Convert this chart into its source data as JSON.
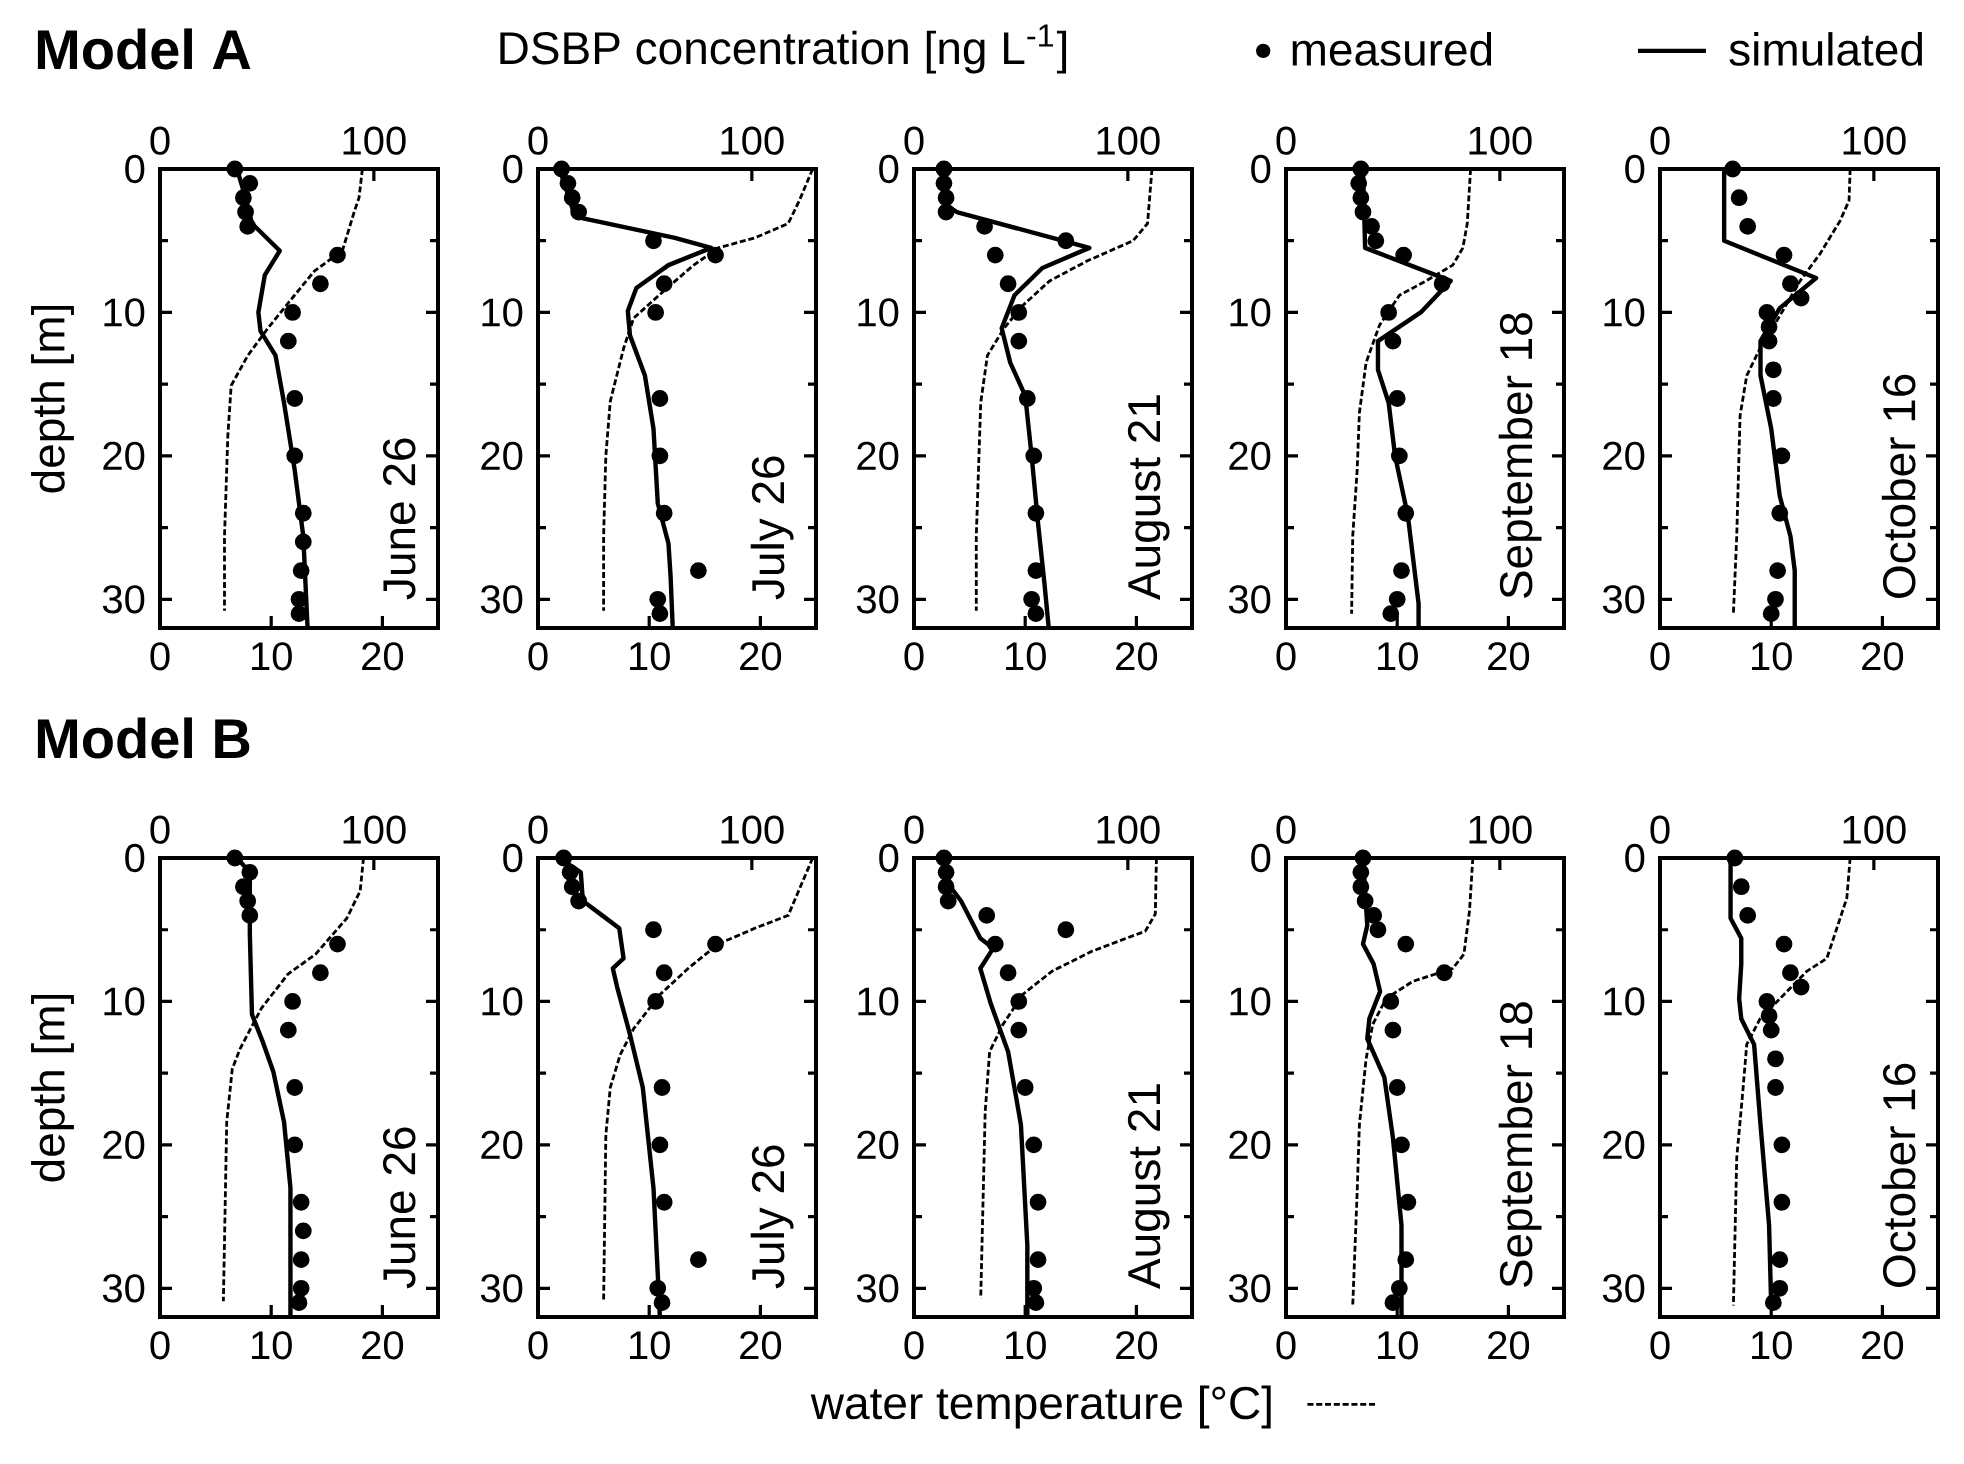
{
  "chart_data": [
    {
      "type": "line",
      "title": "Model A",
      "ylabel": "depth [m]",
      "annotations": [
        "June 26"
      ],
      "xlim": [
        0,
        25
      ],
      "xticks": [
        0,
        10,
        20
      ],
      "x2lim": [
        0,
        130
      ],
      "x2ticks": [
        0,
        100
      ],
      "ylim": [
        32,
        0
      ],
      "yticks": [
        0,
        10,
        20,
        30
      ],
      "series": [
        {
          "type": "scatter",
          "marker": "circle",
          "axis": "x2",
          "color": "#000000",
          "x": [
            35,
            42,
            39,
            40,
            41,
            83,
            75,
            62,
            60,
            63,
            63,
            67,
            67,
            66,
            65,
            65
          ],
          "values": [
            0,
            1,
            2,
            3,
            4,
            6,
            8,
            10,
            12,
            16,
            20,
            24,
            26,
            28,
            30,
            31
          ]
        },
        {
          "type": "line",
          "line_style": "solid",
          "axis": "x2",
          "color": "#000000",
          "x": [
            36,
            40,
            43,
            56,
            49,
            46,
            47,
            54,
            58,
            63,
            67,
            69
          ],
          "values": [
            0,
            2,
            3.8,
            5.7,
            7.4,
            10,
            11.3,
            13,
            16.3,
            21,
            25.6,
            32
          ]
        },
        {
          "type": "line",
          "line_style": "dashed",
          "color": "#000000",
          "x": [
            18.2,
            17.9,
            17.5,
            16.4,
            13.9,
            12.1,
            9.7,
            7.9,
            6.4,
            6.1,
            5.8,
            5.8
          ],
          "values": [
            0,
            2,
            2.9,
            5.7,
            7.1,
            8.8,
            11.1,
            13,
            15.1,
            18.6,
            25.6,
            30.8
          ]
        }
      ]
    },
    {
      "type": "line",
      "annotations": [
        "July 26"
      ],
      "xlim": [
        0,
        25
      ],
      "xticks": [
        0,
        10,
        20
      ],
      "x2lim": [
        0,
        130
      ],
      "x2ticks": [
        0,
        100
      ],
      "ylim": [
        32,
        0
      ],
      "yticks": [
        0,
        10,
        20,
        30
      ],
      "series": [
        {
          "type": "scatter",
          "marker": "circle",
          "axis": "x2",
          "color": "#000000",
          "x": [
            11,
            14,
            16,
            19,
            54,
            83,
            59,
            55,
            57,
            57,
            59,
            75,
            56,
            57
          ],
          "values": [
            0,
            1,
            2,
            3,
            5,
            6,
            8,
            10,
            16,
            20,
            24,
            28,
            30,
            31
          ]
        },
        {
          "type": "line",
          "line_style": "solid",
          "axis": "x2",
          "color": "#000000",
          "x": [
            10,
            13,
            16,
            20,
            42,
            64,
            81,
            61,
            46,
            42,
            43,
            50,
            54,
            56,
            61,
            62,
            63
          ],
          "values": [
            0,
            1.3,
            2.7,
            3.4,
            4.1,
            4.8,
            5.5,
            6.7,
            8.3,
            9.9,
            11.6,
            14.4,
            18.1,
            23.3,
            26.1,
            28.4,
            32
          ]
        },
        {
          "type": "line",
          "line_style": "dashed",
          "color": "#000000",
          "x": [
            24.7,
            23.5,
            22.5,
            19.5,
            16.2,
            14,
            11.6,
            8.6,
            7.7,
            6.5,
            6.1,
            5.9,
            5.9
          ],
          "values": [
            0,
            2.2,
            3.8,
            4.8,
            5.5,
            6.7,
            8.3,
            10.4,
            12.5,
            16.2,
            20,
            25.6,
            30.8
          ]
        }
      ]
    },
    {
      "type": "line",
      "x2label": "DSBP concentration [ng L$^{-1}$]",
      "annotations": [
        "August 21"
      ],
      "xlim": [
        0,
        25
      ],
      "xticks": [
        0,
        10,
        20
      ],
      "x2lim": [
        0,
        130
      ],
      "x2ticks": [
        0,
        100
      ],
      "ylim": [
        32,
        0
      ],
      "yticks": [
        0,
        10,
        20,
        30
      ],
      "series": [
        {
          "type": "scatter",
          "marker": "circle",
          "axis": "x2",
          "color": "#000000",
          "x": [
            14,
            14,
            15,
            15,
            33,
            71,
            38,
            44,
            49,
            49,
            53,
            56,
            57,
            57,
            55,
            57
          ],
          "values": [
            0,
            1,
            2,
            3,
            4,
            5,
            6,
            8,
            10,
            12,
            16,
            20,
            24,
            28,
            30,
            31
          ]
        },
        {
          "type": "line",
          "line_style": "solid",
          "axis": "x2",
          "color": "#000000",
          "x": [
            14,
            15,
            20,
            82,
            60,
            47,
            41,
            45,
            52,
            55,
            58,
            61,
            63
          ],
          "values": [
            0,
            2.5,
            3,
            5.5,
            6.9,
            8.8,
            11.1,
            13.5,
            15.8,
            20,
            24.7,
            28.9,
            32
          ]
        },
        {
          "type": "line",
          "line_style": "dashed",
          "color": "#000000",
          "x": [
            21.4,
            21,
            19.7,
            15.6,
            12.2,
            9.8,
            8.1,
            6.6,
            6,
            5.6,
            5.6
          ],
          "values": [
            0,
            3.8,
            5,
            6.4,
            7.8,
            9.5,
            11.1,
            13,
            16.3,
            25.6,
            30.8
          ]
        }
      ]
    },
    {
      "type": "line",
      "annotations": [
        "September 18"
      ],
      "xlim": [
        0,
        25
      ],
      "xticks": [
        0,
        10,
        20
      ],
      "x2lim": [
        0,
        130
      ],
      "x2ticks": [
        0,
        100
      ],
      "ylim": [
        32,
        0
      ],
      "yticks": [
        0,
        10,
        20,
        30
      ],
      "series": [
        {
          "type": "scatter",
          "marker": "circle",
          "axis": "x2",
          "color": "#000000",
          "x": [
            35,
            34,
            35,
            36,
            40,
            42,
            55,
            73,
            48,
            50,
            52,
            53,
            56,
            54,
            52,
            49
          ],
          "values": [
            0,
            1,
            2,
            3,
            4,
            5,
            6,
            8,
            10,
            12,
            16,
            20,
            24,
            28,
            30,
            31
          ]
        },
        {
          "type": "line",
          "line_style": "solid",
          "axis": "x2",
          "color": "#000000",
          "x": [
            36,
            37,
            77,
            63,
            43,
            43,
            48,
            51,
            57,
            62,
            62
          ],
          "values": [
            0,
            5.5,
            7.8,
            10,
            12,
            14,
            16.3,
            20,
            24.2,
            30.3,
            32
          ]
        },
        {
          "type": "line",
          "line_style": "dashed",
          "color": "#000000",
          "x": [
            16.6,
            16.3,
            15.9,
            15,
            12.6,
            10.2,
            8.4,
            7.2,
            6.6,
            6.4,
            6,
            5.9
          ],
          "values": [
            0,
            3.8,
            5.5,
            6.7,
            7.8,
            8.8,
            10.9,
            13.5,
            17,
            21,
            25.6,
            31
          ]
        }
      ]
    },
    {
      "type": "line",
      "legend": "top",
      "annotations": [
        "October 16"
      ],
      "xlim": [
        0,
        25
      ],
      "xticks": [
        0,
        10,
        20
      ],
      "x2lim": [
        0,
        130
      ],
      "x2ticks": [
        0,
        100
      ],
      "ylim": [
        32,
        0
      ],
      "yticks": [
        0,
        10,
        20,
        30
      ],
      "series": [
        {
          "name": "measured",
          "type": "scatter",
          "marker": "circle",
          "axis": "x2",
          "color": "#000000",
          "x": [
            34,
            37,
            41,
            58,
            61,
            66,
            50,
            51,
            51,
            53,
            53,
            57,
            56,
            55,
            54,
            52
          ],
          "values": [
            0,
            2,
            4,
            6,
            8,
            9,
            10,
            11,
            12,
            14,
            16,
            20,
            24,
            28,
            30,
            31
          ]
        },
        {
          "name": "simulated",
          "type": "line",
          "line_style": "solid",
          "axis": "x2",
          "color": "#000000",
          "x": [
            30,
            30,
            73,
            56,
            47,
            47,
            52,
            56,
            61,
            63,
            63
          ],
          "values": [
            0,
            5,
            7.6,
            9.7,
            12,
            14.4,
            18.1,
            22.8,
            25.6,
            28,
            32
          ]
        },
        {
          "type": "line",
          "line_style": "dashed",
          "color": "#000000",
          "x": [
            17.1,
            17,
            16.2,
            14.4,
            12.6,
            10.8,
            9,
            7.8,
            7.2,
            6.9,
            6.6
          ],
          "values": [
            0,
            2.2,
            3.6,
            5.9,
            7.8,
            10.2,
            12.5,
            14.4,
            17.2,
            25.6,
            31
          ]
        }
      ]
    },
    {
      "type": "line",
      "title": "Model B",
      "ylabel": "depth [m]",
      "annotations": [
        "June 26"
      ],
      "xlim": [
        0,
        25
      ],
      "xticks": [
        0,
        10,
        20
      ],
      "x2lim": [
        0,
        130
      ],
      "x2ticks": [
        0,
        100
      ],
      "ylim": [
        32,
        0
      ],
      "yticks": [
        0,
        10,
        20,
        30
      ],
      "series": [
        {
          "type": "scatter",
          "marker": "circle",
          "axis": "x2",
          "color": "#000000",
          "x": [
            35,
            42,
            39,
            41,
            42,
            83,
            75,
            62,
            60,
            63,
            63,
            66,
            67,
            66,
            66,
            65
          ],
          "values": [
            0,
            1,
            2,
            3,
            4,
            6,
            8,
            10,
            12,
            16,
            20,
            24,
            26,
            28,
            30,
            31
          ]
        },
        {
          "type": "line",
          "line_style": "solid",
          "axis": "x2",
          "color": "#000000",
          "x": [
            36,
            42,
            42,
            43,
            48,
            53,
            58,
            61,
            61
          ],
          "values": [
            0,
            1,
            5.3,
            10.9,
            12.8,
            14.9,
            18.4,
            23,
            32
          ]
        },
        {
          "type": "line",
          "line_style": "dashed",
          "color": "#000000",
          "x": [
            18.3,
            18,
            16.8,
            14,
            11.5,
            9.1,
            7.2,
            6.5,
            6,
            5.7
          ],
          "values": [
            0,
            2.3,
            4.2,
            6.7,
            8.1,
            10.5,
            13.3,
            14.7,
            18.4,
            30.9
          ]
        }
      ]
    },
    {
      "type": "line",
      "annotations": [
        "July 26"
      ],
      "xlim": [
        0,
        25
      ],
      "xticks": [
        0,
        10,
        20
      ],
      "x2lim": [
        0,
        130
      ],
      "x2ticks": [
        0,
        100
      ],
      "ylim": [
        32,
        0
      ],
      "yticks": [
        0,
        10,
        20,
        30
      ],
      "series": [
        {
          "type": "scatter",
          "marker": "circle",
          "axis": "x2",
          "color": "#000000",
          "x": [
            12,
            15,
            16,
            19,
            54,
            83,
            59,
            55,
            58,
            57,
            59,
            75,
            56,
            58
          ],
          "values": [
            0,
            1,
            2,
            3,
            5,
            6,
            8,
            10,
            16,
            20,
            24,
            28,
            30,
            31
          ]
        },
        {
          "type": "line",
          "line_style": "solid",
          "axis": "x2",
          "color": "#000000",
          "x": [
            10,
            20,
            21,
            30,
            38,
            40,
            35,
            37,
            43,
            49,
            54,
            57
          ],
          "values": [
            0,
            1,
            3,
            4,
            4.9,
            7,
            7.7,
            9,
            12.3,
            16,
            23,
            32
          ]
        },
        {
          "type": "line",
          "line_style": "dashed",
          "color": "#000000",
          "x": [
            24.7,
            22.5,
            19.5,
            16.2,
            13.5,
            11,
            8.6,
            7.4,
            6.5,
            6.1,
            5.9
          ],
          "values": [
            0,
            4,
            4.9,
            6,
            7.7,
            9.5,
            11.9,
            13.7,
            16,
            19.3,
            30.9
          ]
        }
      ]
    },
    {
      "type": "line",
      "legend": "bottom",
      "annotations": [
        "August 21"
      ],
      "xlim": [
        0,
        25
      ],
      "xticks": [
        0,
        10,
        20
      ],
      "x2lim": [
        0,
        130
      ],
      "x2ticks": [
        0,
        100
      ],
      "ylim": [
        32,
        0
      ],
      "yticks": [
        0,
        10,
        20,
        30
      ],
      "series": [
        {
          "type": "scatter",
          "marker": "circle",
          "axis": "x2",
          "color": "#000000",
          "x": [
            14,
            15,
            15,
            16,
            34,
            71,
            38,
            44,
            49,
            49,
            52,
            56,
            58,
            58,
            56,
            57
          ],
          "values": [
            0,
            1,
            2,
            3,
            4,
            5,
            6,
            8,
            10,
            12,
            16,
            20,
            24,
            28,
            30,
            31
          ]
        },
        {
          "type": "line",
          "line_style": "solid",
          "axis": "x2",
          "color": "#000000",
          "x": [
            14,
            17,
            22,
            31,
            37,
            31,
            36,
            44,
            50,
            53,
            53
          ],
          "values": [
            0,
            2,
            3,
            5.6,
            6.3,
            7.7,
            10.2,
            13.5,
            18.6,
            27,
            32
          ]
        },
        {
          "name": "water temperature [°C]",
          "type": "line",
          "line_style": "dashed",
          "color": "#000000",
          "x": [
            21.8,
            21.7,
            20.8,
            16,
            12.4,
            9.8,
            8,
            6.8,
            6.4,
            6
          ],
          "values": [
            0,
            3.9,
            5.1,
            6.5,
            7.9,
            9.5,
            11.6,
            13.5,
            17.7,
            30.7
          ]
        }
      ]
    },
    {
      "type": "line",
      "annotations": [
        "September 18"
      ],
      "xlim": [
        0,
        25
      ],
      "xticks": [
        0,
        10,
        20
      ],
      "x2lim": [
        0,
        130
      ],
      "x2ticks": [
        0,
        100
      ],
      "ylim": [
        32,
        0
      ],
      "yticks": [
        0,
        10,
        20,
        30
      ],
      "series": [
        {
          "type": "scatter",
          "marker": "circle",
          "axis": "x2",
          "color": "#000000",
          "x": [
            36,
            35,
            35,
            37,
            41,
            43,
            56,
            74,
            49,
            50,
            52,
            54,
            57,
            56,
            53,
            50
          ],
          "values": [
            0,
            1,
            2,
            3,
            4,
            5,
            6,
            8,
            10,
            12,
            16,
            20,
            24,
            28,
            30,
            31
          ]
        },
        {
          "type": "line",
          "line_style": "solid",
          "axis": "x2",
          "color": "#000000",
          "x": [
            36,
            38,
            36,
            41,
            44,
            39,
            38,
            46,
            50,
            54,
            54
          ],
          "values": [
            0,
            4.7,
            6,
            7.4,
            9.3,
            11.2,
            12.6,
            15.3,
            19.5,
            25.6,
            32
          ]
        },
        {
          "type": "line",
          "line_style": "dashed",
          "color": "#000000",
          "x": [
            16.8,
            16.5,
            16,
            15,
            11.4,
            9,
            7.8,
            7.2,
            6.6,
            6.4,
            6
          ],
          "values": [
            0,
            3.7,
            6.7,
            7.7,
            8.6,
            9.8,
            11.6,
            14,
            18.6,
            23.3,
            31.2
          ]
        }
      ]
    },
    {
      "type": "line",
      "annotations": [
        "October 16"
      ],
      "xlim": [
        0,
        25
      ],
      "xticks": [
        0,
        10,
        20
      ],
      "x2lim": [
        0,
        130
      ],
      "x2ticks": [
        0,
        100
      ],
      "ylim": [
        32,
        0
      ],
      "yticks": [
        0,
        10,
        20,
        30
      ],
      "series": [
        {
          "type": "scatter",
          "marker": "circle",
          "axis": "x2",
          "color": "#000000",
          "x": [
            35,
            38,
            41,
            58,
            61,
            66,
            50,
            51,
            52,
            54,
            54,
            57,
            57,
            56,
            56,
            53
          ],
          "values": [
            0,
            2,
            4,
            6,
            8,
            9,
            10,
            11,
            12,
            14,
            16,
            20,
            24,
            28,
            30,
            31
          ]
        },
        {
          "type": "line",
          "line_style": "solid",
          "axis": "x2",
          "color": "#000000",
          "x": [
            33,
            33,
            38,
            38,
            37,
            38,
            44,
            47,
            51,
            52
          ],
          "values": [
            0,
            4.2,
            5.6,
            7.4,
            9.8,
            11.2,
            13,
            18.6,
            25.6,
            31.2
          ]
        },
        {
          "type": "line",
          "line_style": "dashed",
          "color": "#000000",
          "x": [
            17.1,
            16.8,
            15,
            13.2,
            10.8,
            9,
            7.8,
            7.4,
            6.9,
            6.6
          ],
          "values": [
            0,
            2.8,
            7,
            7.9,
            9.8,
            11.2,
            13,
            16.7,
            20.9,
            31.2
          ]
        }
      ]
    }
  ]
}
